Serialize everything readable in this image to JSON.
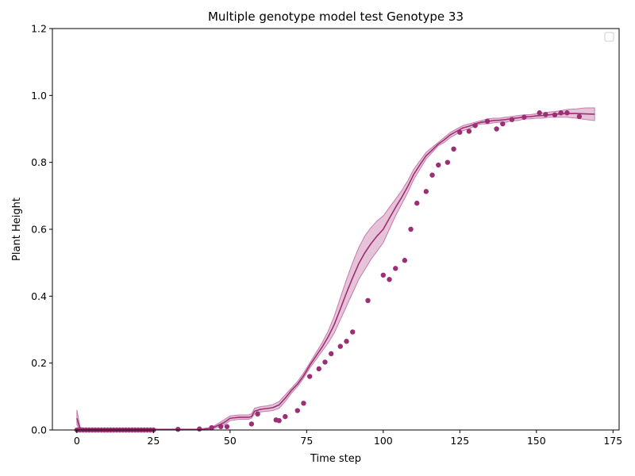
{
  "chart_data": {
    "type": "line",
    "title": "Multiple genotype model test Genotype 33",
    "xlabel": "Time step",
    "ylabel": "Plant Height",
    "xlim": [
      -8,
      177
    ],
    "ylim": [
      0,
      1.2
    ],
    "xticks": [
      0,
      25,
      50,
      75,
      100,
      125,
      150,
      175
    ],
    "yticks": [
      0.0,
      0.2,
      0.4,
      0.6,
      0.8,
      1.0,
      1.2
    ],
    "grid": false,
    "legend": "top-right",
    "colors": {
      "series": "#9c2f74",
      "band": "#c77aab"
    },
    "series": [
      {
        "type": "band",
        "x": [
          0,
          1,
          2,
          5,
          10,
          20,
          30,
          40,
          44,
          48,
          50,
          53,
          56,
          57,
          58,
          60,
          62,
          64,
          66,
          68,
          70,
          72,
          74,
          76,
          78,
          80,
          82,
          84,
          86,
          88,
          90,
          92,
          94,
          96,
          98,
          100,
          102,
          104,
          106,
          108,
          110,
          112,
          114,
          116,
          118,
          120,
          122,
          124,
          126,
          128,
          130,
          132,
          134,
          136,
          138,
          140,
          142,
          144,
          146,
          148,
          150,
          152,
          154,
          156,
          158,
          160,
          163,
          166,
          169
        ],
        "lower": [
          0.015,
          0.0,
          0.0,
          0.0,
          0.0,
          0.0,
          0.0,
          0.0,
          0.002,
          0.015,
          0.028,
          0.032,
          0.032,
          0.035,
          0.048,
          0.054,
          0.056,
          0.058,
          0.065,
          0.085,
          0.11,
          0.13,
          0.155,
          0.185,
          0.21,
          0.235,
          0.26,
          0.29,
          0.33,
          0.37,
          0.41,
          0.45,
          0.48,
          0.51,
          0.535,
          0.56,
          0.6,
          0.64,
          0.675,
          0.71,
          0.75,
          0.78,
          0.81,
          0.83,
          0.85,
          0.86,
          0.875,
          0.885,
          0.895,
          0.9,
          0.91,
          0.915,
          0.915,
          0.918,
          0.92,
          0.92,
          0.925,
          0.925,
          0.93,
          0.93,
          0.932,
          0.932,
          0.935,
          0.935,
          0.935,
          0.935,
          0.932,
          0.928,
          0.925
        ],
        "upper": [
          0.06,
          0.01,
          0.004,
          0.003,
          0.003,
          0.003,
          0.003,
          0.003,
          0.008,
          0.03,
          0.042,
          0.045,
          0.045,
          0.048,
          0.065,
          0.07,
          0.072,
          0.076,
          0.085,
          0.105,
          0.125,
          0.145,
          0.17,
          0.2,
          0.23,
          0.26,
          0.295,
          0.34,
          0.395,
          0.45,
          0.5,
          0.545,
          0.58,
          0.605,
          0.625,
          0.64,
          0.665,
          0.69,
          0.715,
          0.745,
          0.78,
          0.805,
          0.83,
          0.845,
          0.86,
          0.875,
          0.89,
          0.9,
          0.91,
          0.915,
          0.92,
          0.925,
          0.93,
          0.932,
          0.932,
          0.935,
          0.937,
          0.94,
          0.942,
          0.943,
          0.945,
          0.948,
          0.95,
          0.952,
          0.955,
          0.958,
          0.96,
          0.963,
          0.963
        ]
      },
      {
        "type": "line",
        "x": [
          0,
          1,
          2,
          5,
          10,
          20,
          30,
          40,
          44,
          48,
          50,
          53,
          56,
          57,
          58,
          60,
          62,
          64,
          66,
          68,
          70,
          72,
          74,
          76,
          78,
          80,
          82,
          84,
          86,
          88,
          90,
          92,
          94,
          96,
          98,
          100,
          102,
          104,
          106,
          108,
          110,
          112,
          114,
          116,
          118,
          120,
          122,
          124,
          126,
          128,
          130,
          132,
          134,
          136,
          138,
          140,
          142,
          144,
          146,
          148,
          150,
          152,
          154,
          156,
          158,
          160,
          163,
          166,
          169
        ],
        "y": [
          0.035,
          0.004,
          0.001,
          0.001,
          0.001,
          0.001,
          0.001,
          0.001,
          0.005,
          0.022,
          0.035,
          0.038,
          0.038,
          0.04,
          0.056,
          0.062,
          0.064,
          0.067,
          0.075,
          0.095,
          0.118,
          0.137,
          0.162,
          0.193,
          0.22,
          0.247,
          0.278,
          0.315,
          0.362,
          0.41,
          0.455,
          0.497,
          0.53,
          0.557,
          0.58,
          0.6,
          0.633,
          0.665,
          0.695,
          0.728,
          0.765,
          0.793,
          0.82,
          0.837,
          0.855,
          0.868,
          0.883,
          0.893,
          0.903,
          0.908,
          0.915,
          0.92,
          0.922,
          0.925,
          0.926,
          0.928,
          0.931,
          0.933,
          0.936,
          0.937,
          0.939,
          0.94,
          0.942,
          0.944,
          0.945,
          0.946,
          0.946,
          0.945,
          0.944
        ]
      },
      {
        "type": "scatter",
        "x": [
          0,
          1,
          2,
          3,
          4,
          5,
          6,
          7,
          8,
          9,
          10,
          11,
          12,
          13,
          14,
          15,
          16,
          17,
          18,
          19,
          20,
          21,
          22,
          23,
          24,
          25,
          33,
          40,
          44,
          47,
          49,
          57,
          59,
          65,
          66,
          68,
          72,
          74,
          76,
          79,
          81,
          83,
          86,
          88,
          90,
          95,
          100,
          102,
          104,
          107,
          109,
          111,
          114,
          116,
          118,
          121,
          123,
          125,
          128,
          130,
          134,
          137,
          139,
          142,
          146,
          151,
          153,
          156,
          158,
          160,
          164
        ],
        "y": [
          0.0,
          0.0,
          0.0,
          0.0,
          0.0,
          0.0,
          0.0,
          0.0,
          0.0,
          0.0,
          0.0,
          0.0,
          0.0,
          0.0,
          0.0,
          0.0,
          0.0,
          0.0,
          0.0,
          0.0,
          0.0,
          0.0,
          0.0,
          0.0,
          0.0,
          0.0,
          0.002,
          0.003,
          0.007,
          0.01,
          0.01,
          0.018,
          0.048,
          0.03,
          0.028,
          0.04,
          0.058,
          0.08,
          0.16,
          0.183,
          0.203,
          0.228,
          0.25,
          0.265,
          0.293,
          0.387,
          0.463,
          0.45,
          0.483,
          0.507,
          0.6,
          0.678,
          0.713,
          0.762,
          0.792,
          0.8,
          0.84,
          0.89,
          0.893,
          0.91,
          0.923,
          0.9,
          0.915,
          0.928,
          0.935,
          0.948,
          0.943,
          0.942,
          0.948,
          0.948,
          0.937
        ]
      }
    ]
  }
}
